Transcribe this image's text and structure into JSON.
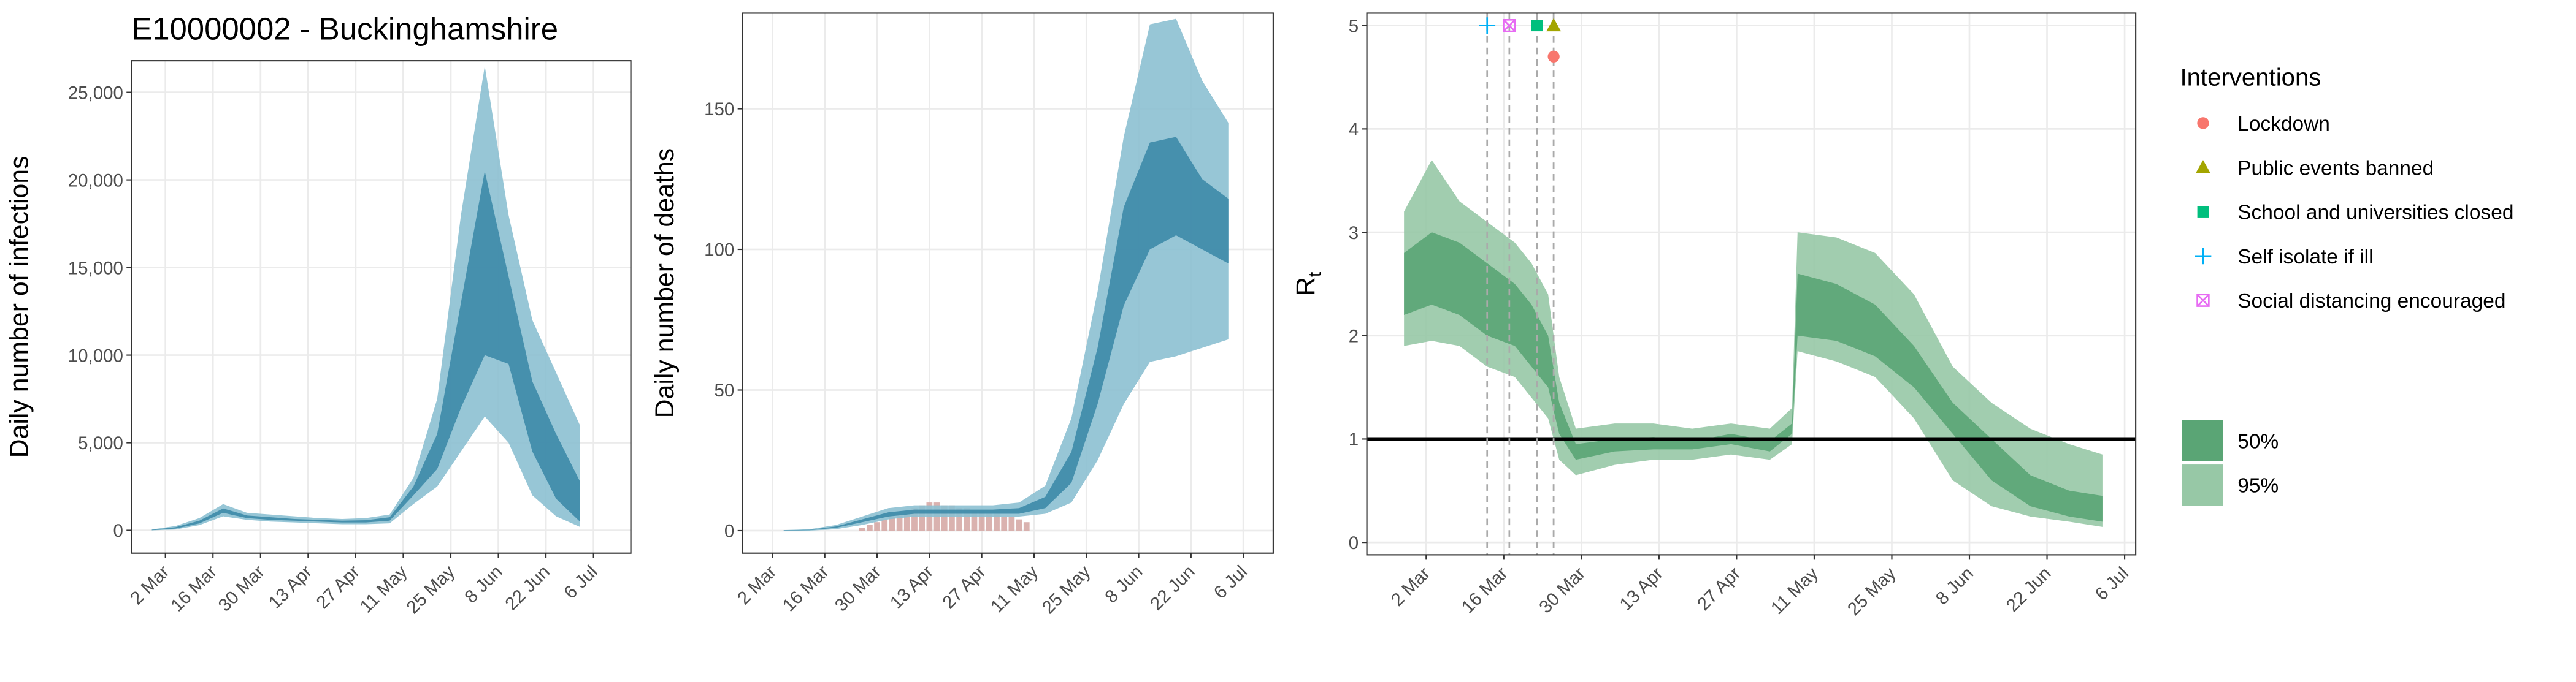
{
  "chart_data": [
    {
      "type": "band",
      "title": "E10000002 - Buckinghamshire",
      "ylabel": "Daily number of infections",
      "x": [
        -4,
        3,
        10,
        17,
        24,
        31,
        38,
        45,
        52,
        59,
        66,
        73,
        80,
        87,
        94,
        101,
        108,
        115,
        122
      ],
      "series": [
        {
          "name": "95%",
          "color": "#8cc0d2",
          "lower": [
            0,
            50,
            300,
            800,
            600,
            500,
            450,
            400,
            350,
            350,
            400,
            1500,
            2500,
            4500,
            6500,
            5000,
            2000,
            800,
            200
          ],
          "upper": [
            50,
            250,
            700,
            1500,
            1000,
            900,
            800,
            700,
            650,
            700,
            900,
            3000,
            7500,
            18000,
            26500,
            18000,
            12000,
            9000,
            6000
          ]
        },
        {
          "name": "50%",
          "color": "#3d8aa8",
          "lower": [
            10,
            100,
            400,
            1000,
            700,
            600,
            550,
            500,
            450,
            450,
            550,
            2000,
            3500,
            7000,
            10000,
            9500,
            4500,
            1800,
            500
          ],
          "upper": [
            30,
            180,
            550,
            1250,
            850,
            750,
            650,
            600,
            550,
            580,
            750,
            2500,
            5500,
            13000,
            20500,
            14500,
            8500,
            5500,
            2800
          ]
        }
      ],
      "xlim": [
        -10,
        137
      ],
      "xticks": [
        {
          "value": 0,
          "label": "2 Mar"
        },
        {
          "value": 14,
          "label": "16 Mar"
        },
        {
          "value": 28,
          "label": "30 Mar"
        },
        {
          "value": 42,
          "label": "13 Apr"
        },
        {
          "value": 56,
          "label": "27 Apr"
        },
        {
          "value": 70,
          "label": "11 May"
        },
        {
          "value": 84,
          "label": "25 May"
        },
        {
          "value": 98,
          "label": "8 Jun"
        },
        {
          "value": 112,
          "label": "22 Jun"
        },
        {
          "value": 126,
          "label": "6 Jul"
        }
      ],
      "ylim": [
        -1300,
        26800
      ],
      "yticks": [
        0,
        {
          "value": 5000,
          "label": "5,000"
        },
        {
          "value": 10000,
          "label": "10,000"
        },
        {
          "value": 15000,
          "label": "15,000"
        },
        {
          "value": 20000,
          "label": "20,000"
        },
        {
          "value": 25000,
          "label": "25,000"
        }
      ],
      "grid": true
    },
    {
      "type": "band",
      "ylabel": "Daily number of deaths",
      "x": [
        3,
        10,
        17,
        24,
        31,
        38,
        45,
        52,
        59,
        66,
        73,
        80,
        87,
        94,
        101,
        108,
        115,
        122
      ],
      "series": [
        {
          "name": "95%",
          "color": "#8cc0d2",
          "lower": [
            0,
            0,
            0.5,
            2,
            4,
            5,
            5,
            5,
            5,
            5,
            6,
            10,
            25,
            45,
            60,
            62,
            65,
            68
          ],
          "upper": [
            0.2,
            0.5,
            2,
            5,
            8,
            9,
            9,
            9,
            9,
            10,
            16,
            40,
            85,
            140,
            180,
            182,
            160,
            145
          ]
        },
        {
          "name": "50%",
          "color": "#3d8aa8",
          "lower": [
            0,
            0.2,
            1,
            3,
            5,
            6,
            6,
            6,
            6,
            6,
            8,
            17,
            45,
            80,
            100,
            105,
            100,
            95
          ],
          "upper": [
            0.1,
            0.3,
            1.5,
            4,
            6.5,
            7.5,
            7.5,
            7.5,
            7.5,
            8,
            12,
            28,
            65,
            115,
            138,
            140,
            125,
            118
          ]
        }
      ],
      "observed": {
        "color": "#d4a5a1",
        "x": [
          24,
          26,
          28,
          30,
          32,
          34,
          36,
          38,
          40,
          42,
          44,
          46,
          48,
          50,
          52,
          54,
          56,
          58,
          60,
          62,
          64,
          66,
          68
        ],
        "values": [
          1,
          2,
          3,
          4,
          5,
          6,
          7,
          8,
          9,
          10,
          10,
          9,
          9,
          8,
          8,
          7,
          7,
          6,
          6,
          5,
          5,
          4,
          3
        ]
      },
      "xlim": [
        -8,
        134
      ],
      "xticks": [
        {
          "value": 0,
          "label": "2 Mar"
        },
        {
          "value": 14,
          "label": "16 Mar"
        },
        {
          "value": 28,
          "label": "30 Mar"
        },
        {
          "value": 42,
          "label": "13 Apr"
        },
        {
          "value": 56,
          "label": "27 Apr"
        },
        {
          "value": 70,
          "label": "11 May"
        },
        {
          "value": 84,
          "label": "25 May"
        },
        {
          "value": 98,
          "label": "8 Jun"
        },
        {
          "value": 112,
          "label": "22 Jun"
        },
        {
          "value": 126,
          "label": "6 Jul"
        }
      ],
      "ylim": [
        -8,
        184
      ],
      "yticks": [
        0,
        50,
        100,
        150
      ],
      "grid": true
    },
    {
      "type": "band",
      "ylabel": {
        "main": "R",
        "sub": "t"
      },
      "x": [
        -4,
        1,
        6,
        11,
        16,
        19,
        22,
        24,
        27,
        34,
        41,
        48,
        55,
        62,
        66,
        67,
        74,
        81,
        88,
        95,
        102,
        109,
        116,
        122
      ],
      "series": [
        {
          "name": "95%",
          "color": "#97c8a6",
          "lower": [
            1.9,
            1.95,
            1.9,
            1.7,
            1.6,
            1.4,
            1.2,
            0.8,
            0.65,
            0.75,
            0.8,
            0.8,
            0.85,
            0.8,
            0.95,
            1.85,
            1.75,
            1.6,
            1.2,
            0.6,
            0.35,
            0.25,
            0.2,
            0.15
          ],
          "upper": [
            3.2,
            3.7,
            3.3,
            3.1,
            2.9,
            2.7,
            2.4,
            1.6,
            1.1,
            1.15,
            1.15,
            1.1,
            1.15,
            1.1,
            1.3,
            3.0,
            2.95,
            2.8,
            2.4,
            1.7,
            1.35,
            1.1,
            0.95,
            0.85
          ]
        },
        {
          "name": "50%",
          "color": "#5aa575",
          "lower": [
            2.2,
            2.3,
            2.2,
            2.0,
            1.9,
            1.7,
            1.5,
            1.05,
            0.8,
            0.88,
            0.9,
            0.9,
            0.95,
            0.88,
            1.05,
            2.0,
            1.95,
            1.8,
            1.5,
            1.05,
            0.6,
            0.35,
            0.25,
            0.2
          ],
          "upper": [
            2.8,
            3.0,
            2.9,
            2.7,
            2.5,
            2.3,
            2.0,
            1.35,
            0.95,
            1.0,
            1.02,
            0.98,
            1.05,
            0.98,
            1.15,
            2.6,
            2.5,
            2.3,
            1.9,
            1.35,
            1.0,
            0.65,
            0.5,
            0.45
          ]
        }
      ],
      "hline": 1,
      "legend_title": "Interventions",
      "markers": [
        {
          "name": "Lockdown",
          "shape": "circle",
          "color": "#f8766d",
          "x": 23,
          "y": 4.7
        },
        {
          "name": "Public events banned",
          "shape": "triangle",
          "color": "#a3a500",
          "x": 23,
          "y": 5
        },
        {
          "name": "School and universities closed",
          "shape": "square",
          "color": "#00bf7d",
          "x": 20,
          "y": 5
        },
        {
          "name": "Self isolate if ill",
          "shape": "plus",
          "color": "#00b0f6",
          "x": 11,
          "y": 5
        },
        {
          "name": "Social distancing encouraged",
          "shape": "boxx",
          "color": "#e76bf3",
          "x": 15,
          "y": 5
        }
      ],
      "xlim": [
        -10.7,
        128
      ],
      "xticks": [
        {
          "value": 0,
          "label": "2 Mar"
        },
        {
          "value": 14,
          "label": "16 Mar"
        },
        {
          "value": 28,
          "label": "30 Mar"
        },
        {
          "value": 42,
          "label": "13 Apr"
        },
        {
          "value": 56,
          "label": "27 Apr"
        },
        {
          "value": 70,
          "label": "11 May"
        },
        {
          "value": 84,
          "label": "25 May"
        },
        {
          "value": 98,
          "label": "8 Jun"
        },
        {
          "value": 112,
          "label": "22 Jun"
        },
        {
          "value": 126,
          "label": "6 Jul"
        }
      ],
      "ylim": [
        -0.12,
        5.12
      ],
      "yticks": [
        0,
        1,
        2,
        3,
        4,
        5
      ],
      "grid": true
    }
  ]
}
